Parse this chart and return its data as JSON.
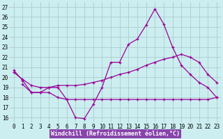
{
  "bg_color": "#cceef0",
  "grid_color": "#aacccc",
  "line_color": "#990099",
  "line_width": 0.9,
  "marker": "D",
  "marker_size": 2.0,
  "series1_x": [
    0,
    1,
    2,
    3,
    4,
    5,
    6,
    7,
    8,
    9,
    10,
    11,
    12,
    13,
    14,
    15,
    16,
    17,
    18,
    19,
    20,
    21,
    22,
    23
  ],
  "series1_y": [
    20.7,
    19.7,
    18.5,
    18.5,
    19.0,
    19.0,
    17.8,
    16.0,
    15.9,
    17.3,
    19.0,
    21.5,
    21.5,
    23.3,
    23.8,
    25.2,
    26.8,
    25.3,
    23.0,
    21.2,
    20.3,
    19.5,
    19.0,
    18.0
  ],
  "series2_x": [
    0,
    1,
    2,
    3,
    4,
    5,
    6,
    7,
    8,
    9,
    10,
    11,
    12,
    13,
    14,
    15,
    16,
    17,
    18,
    19,
    20,
    21,
    22,
    23
  ],
  "series2_y": [
    20.5,
    19.8,
    19.2,
    19.0,
    19.0,
    19.2,
    19.2,
    19.2,
    19.3,
    19.5,
    19.7,
    20.0,
    20.3,
    20.5,
    20.8,
    21.2,
    21.5,
    21.8,
    22.0,
    22.3,
    22.0,
    21.5,
    20.3,
    19.5
  ],
  "series3_x": [
    1,
    2,
    3,
    4,
    5,
    6,
    7,
    8,
    9,
    10,
    11,
    12,
    13,
    14,
    15,
    16,
    17,
    18,
    19,
    20,
    21,
    22,
    23
  ],
  "series3_y": [
    19.3,
    18.5,
    18.5,
    18.5,
    18.0,
    17.8,
    17.8,
    17.8,
    17.8,
    17.8,
    17.8,
    17.8,
    17.8,
    17.8,
    17.8,
    17.8,
    17.8,
    17.8,
    17.8,
    17.8,
    17.8,
    17.8,
    18.0
  ],
  "xlabel": "Windchill (Refroidissement éolien,°C)",
  "xlim": [
    -0.5,
    23.5
  ],
  "xticks": [
    0,
    1,
    2,
    3,
    4,
    5,
    6,
    7,
    8,
    9,
    10,
    11,
    12,
    13,
    14,
    15,
    16,
    17,
    18,
    19,
    20,
    21,
    22,
    23
  ],
  "ylim": [
    15.5,
    27.5
  ],
  "yticks": [
    16,
    17,
    18,
    19,
    20,
    21,
    22,
    23,
    24,
    25,
    26,
    27
  ],
  "xlabel_fontsize": 6.0,
  "tick_fontsize": 5.5
}
